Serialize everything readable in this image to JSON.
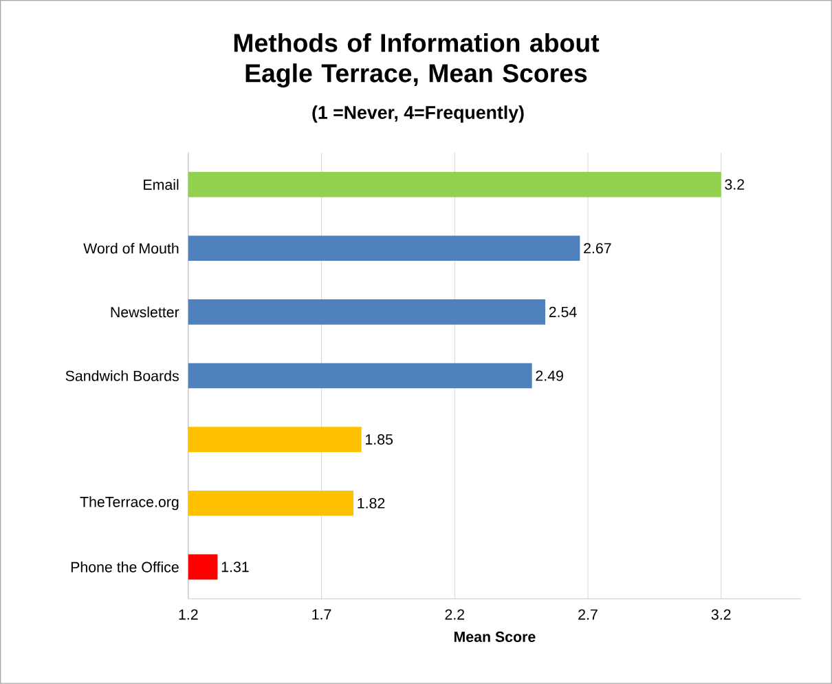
{
  "chart_data": {
    "type": "bar",
    "orientation": "horizontal",
    "title": "Methods of Information about Eagle Terrace, Mean Scores",
    "subtitle": "(1 =Never, 4=Frequently)",
    "xlabel": "Mean Score",
    "categories": [
      "Email",
      "Word of Mouth",
      "Newsletter",
      "Sandwich Boards",
      null,
      "TheTerrace.org",
      "Phone the Office"
    ],
    "values": [
      3.2,
      2.67,
      2.54,
      2.49,
      1.85,
      1.82,
      1.31
    ],
    "colors": [
      "#92d050",
      "#4f81bd",
      "#4f81bd",
      "#4f81bd",
      "#ffc000",
      "#ffc000",
      "#ff0000"
    ],
    "xlim": [
      1.2,
      3.5
    ],
    "xticks": [
      1.2,
      1.7,
      2.2,
      2.7,
      3.2
    ],
    "grid": "x",
    "data_labels": true
  }
}
